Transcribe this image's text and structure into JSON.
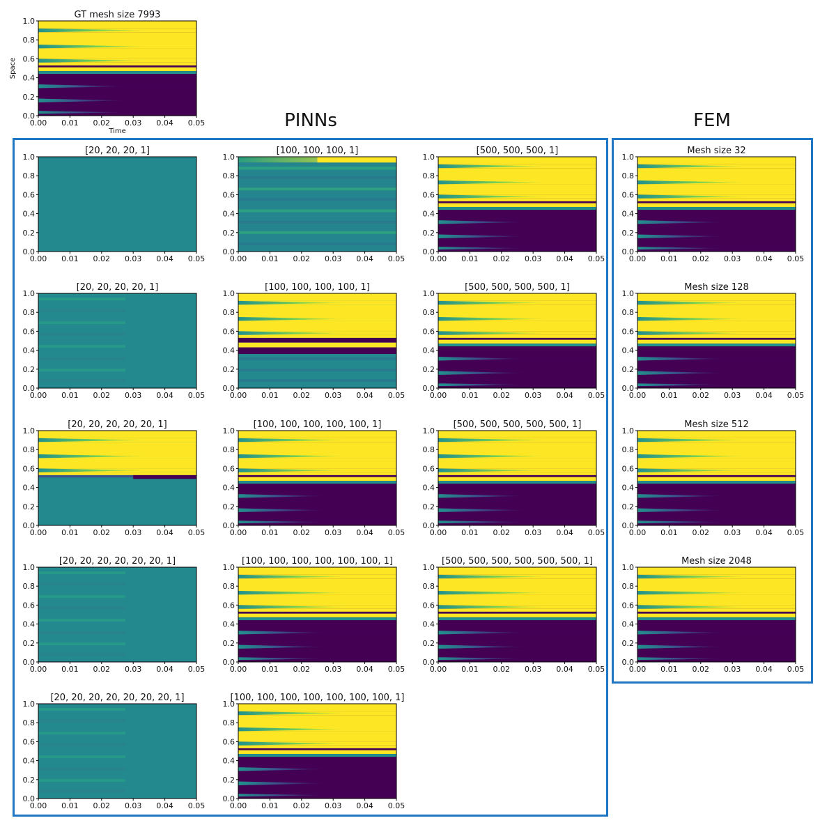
{
  "sections": {
    "pinns_title": "PINNs",
    "fem_title": "FEM"
  },
  "chart_data": [
    {
      "id": "gt",
      "type": "heatmap",
      "title": "GT mesh size 7993",
      "pattern": "full",
      "xlabel": "Time",
      "ylabel": "Space",
      "xticks": [
        "0.00",
        "0.01",
        "0.02",
        "0.03",
        "0.04",
        "0.05"
      ],
      "yticks": [
        "0.0",
        "0.2",
        "0.4",
        "0.6",
        "0.8",
        "1.0"
      ],
      "xlim": [
        0,
        0.05
      ],
      "ylim": [
        0,
        1
      ]
    },
    {
      "id": "p20_4",
      "type": "heatmap",
      "title": "[20, 20, 20, 1]",
      "pattern": "flat",
      "xticks": [
        "0.00",
        "0.01",
        "0.02",
        "0.03",
        "0.04",
        "0.05"
      ],
      "yticks": [
        "0.0",
        "0.2",
        "0.4",
        "0.6",
        "0.8",
        "1.0"
      ],
      "xlim": [
        0,
        0.05
      ],
      "ylim": [
        0,
        1
      ]
    },
    {
      "id": "p100_4",
      "type": "heatmap",
      "title": "[100, 100, 100, 1]",
      "pattern": "weak",
      "xticks": [
        "0.00",
        "0.01",
        "0.02",
        "0.03",
        "0.04",
        "0.05"
      ],
      "yticks": [
        "0.0",
        "0.2",
        "0.4",
        "0.6",
        "0.8",
        "1.0"
      ],
      "xlim": [
        0,
        0.05
      ],
      "ylim": [
        0,
        1
      ]
    },
    {
      "id": "p500_4",
      "type": "heatmap",
      "title": "[500, 500, 500, 1]",
      "pattern": "full",
      "xticks": [
        "0.00",
        "0.01",
        "0.02",
        "0.03",
        "0.04",
        "0.05"
      ],
      "yticks": [
        "0.0",
        "0.2",
        "0.4",
        "0.6",
        "0.8",
        "1.0"
      ],
      "xlim": [
        0,
        0.05
      ],
      "ylim": [
        0,
        1
      ]
    },
    {
      "id": "fem32",
      "type": "heatmap",
      "title": "Mesh size 32",
      "pattern": "full",
      "xticks": [
        "0.00",
        "0.01",
        "0.02",
        "0.03",
        "0.04",
        "0.05"
      ],
      "yticks": [
        "0.0",
        "0.2",
        "0.4",
        "0.6",
        "0.8",
        "1.0"
      ],
      "xlim": [
        0,
        0.05
      ],
      "ylim": [
        0,
        1
      ]
    },
    {
      "id": "p20_5",
      "type": "heatmap",
      "title": "[20, 20, 20, 20, 1]",
      "pattern": "flatstripe",
      "xticks": [
        "0.00",
        "0.01",
        "0.02",
        "0.03",
        "0.04",
        "0.05"
      ],
      "yticks": [
        "0.0",
        "0.2",
        "0.4",
        "0.6",
        "0.8",
        "1.0"
      ],
      "xlim": [
        0,
        0.05
      ],
      "ylim": [
        0,
        1
      ]
    },
    {
      "id": "p100_5",
      "type": "heatmap",
      "title": "[100, 100, 100, 100, 1]",
      "pattern": "partial",
      "xticks": [
        "0.00",
        "0.01",
        "0.02",
        "0.03",
        "0.04",
        "0.05"
      ],
      "yticks": [
        "0.0",
        "0.2",
        "0.4",
        "0.6",
        "0.8",
        "1.0"
      ],
      "xlim": [
        0,
        0.05
      ],
      "ylim": [
        0,
        1
      ]
    },
    {
      "id": "p500_5",
      "type": "heatmap",
      "title": "[500, 500, 500, 500, 1]",
      "pattern": "full",
      "xticks": [
        "0.00",
        "0.01",
        "0.02",
        "0.03",
        "0.04",
        "0.05"
      ],
      "yticks": [
        "0.0",
        "0.2",
        "0.4",
        "0.6",
        "0.8",
        "1.0"
      ],
      "xlim": [
        0,
        0.05
      ],
      "ylim": [
        0,
        1
      ]
    },
    {
      "id": "fem128",
      "type": "heatmap",
      "title": "Mesh size 128",
      "pattern": "full",
      "xticks": [
        "0.00",
        "0.01",
        "0.02",
        "0.03",
        "0.04",
        "0.05"
      ],
      "yticks": [
        "0.0",
        "0.2",
        "0.4",
        "0.6",
        "0.8",
        "1.0"
      ],
      "xlim": [
        0,
        0.05
      ],
      "ylim": [
        0,
        1
      ]
    },
    {
      "id": "p20_6",
      "type": "heatmap",
      "title": "[20, 20, 20, 20, 20, 1]",
      "pattern": "tophalf",
      "xticks": [
        "0.00",
        "0.01",
        "0.02",
        "0.03",
        "0.04",
        "0.05"
      ],
      "yticks": [
        "0.0",
        "0.2",
        "0.4",
        "0.6",
        "0.8",
        "1.0"
      ],
      "xlim": [
        0,
        0.05
      ],
      "ylim": [
        0,
        1
      ]
    },
    {
      "id": "p100_6",
      "type": "heatmap",
      "title": "[100, 100, 100, 100, 100, 1]",
      "pattern": "full",
      "xticks": [
        "0.00",
        "0.01",
        "0.02",
        "0.03",
        "0.04",
        "0.05"
      ],
      "yticks": [
        "0.0",
        "0.2",
        "0.4",
        "0.6",
        "0.8",
        "1.0"
      ],
      "xlim": [
        0,
        0.05
      ],
      "ylim": [
        0,
        1
      ]
    },
    {
      "id": "p500_6",
      "type": "heatmap",
      "title": "[500, 500, 500, 500, 500, 1]",
      "pattern": "full",
      "xticks": [
        "0.00",
        "0.01",
        "0.02",
        "0.03",
        "0.04",
        "0.05"
      ],
      "yticks": [
        "0.0",
        "0.2",
        "0.4",
        "0.6",
        "0.8",
        "1.0"
      ],
      "xlim": [
        0,
        0.05
      ],
      "ylim": [
        0,
        1
      ]
    },
    {
      "id": "fem512",
      "type": "heatmap",
      "title": "Mesh size 512",
      "pattern": "full",
      "xticks": [
        "0.00",
        "0.01",
        "0.02",
        "0.03",
        "0.04",
        "0.05"
      ],
      "yticks": [
        "0.0",
        "0.2",
        "0.4",
        "0.6",
        "0.8",
        "1.0"
      ],
      "xlim": [
        0,
        0.05
      ],
      "ylim": [
        0,
        1
      ]
    },
    {
      "id": "p20_7",
      "type": "heatmap",
      "title": "[20, 20, 20, 20, 20, 20, 1]",
      "pattern": "flatstripe",
      "xticks": [
        "0.00",
        "0.01",
        "0.02",
        "0.03",
        "0.04",
        "0.05"
      ],
      "yticks": [
        "0.0",
        "0.2",
        "0.4",
        "0.6",
        "0.8",
        "1.0"
      ],
      "xlim": [
        0,
        0.05
      ],
      "ylim": [
        0,
        1
      ]
    },
    {
      "id": "p100_7",
      "type": "heatmap",
      "title": "[100, 100, 100, 100, 100, 100, 1]",
      "pattern": "full",
      "xticks": [
        "0.00",
        "0.01",
        "0.02",
        "0.03",
        "0.04",
        "0.05"
      ],
      "yticks": [
        "0.0",
        "0.2",
        "0.4",
        "0.6",
        "0.8",
        "1.0"
      ],
      "xlim": [
        0,
        0.05
      ],
      "ylim": [
        0,
        1
      ]
    },
    {
      "id": "p500_7",
      "type": "heatmap",
      "title": "[500, 500, 500, 500, 500, 500, 1]",
      "pattern": "full",
      "xticks": [
        "0.00",
        "0.01",
        "0.02",
        "0.03",
        "0.04",
        "0.05"
      ],
      "yticks": [
        "0.0",
        "0.2",
        "0.4",
        "0.6",
        "0.8",
        "1.0"
      ],
      "xlim": [
        0,
        0.05
      ],
      "ylim": [
        0,
        1
      ]
    },
    {
      "id": "fem2048",
      "type": "heatmap",
      "title": "Mesh size 2048",
      "pattern": "full",
      "xticks": [
        "0.00",
        "0.01",
        "0.02",
        "0.03",
        "0.04",
        "0.05"
      ],
      "yticks": [
        "0.0",
        "0.2",
        "0.4",
        "0.6",
        "0.8",
        "1.0"
      ],
      "xlim": [
        0,
        0.05
      ],
      "ylim": [
        0,
        1
      ]
    },
    {
      "id": "p20_8",
      "type": "heatmap",
      "title": "[20, 20, 20, 20, 20, 20, 20, 1]",
      "pattern": "flatstripe",
      "xticks": [
        "0.00",
        "0.01",
        "0.02",
        "0.03",
        "0.04",
        "0.05"
      ],
      "yticks": [
        "0.0",
        "0.2",
        "0.4",
        "0.6",
        "0.8",
        "1.0"
      ],
      "xlim": [
        0,
        0.05
      ],
      "ylim": [
        0,
        1
      ]
    },
    {
      "id": "p100_8",
      "type": "heatmap",
      "title": "[100, 100, 100, 100, 100, 100, 100, 1]",
      "pattern": "full",
      "xticks": [
        "0.00",
        "0.01",
        "0.02",
        "0.03",
        "0.04",
        "0.05"
      ],
      "yticks": [
        "0.0",
        "0.2",
        "0.4",
        "0.6",
        "0.8",
        "1.0"
      ],
      "xlim": [
        0,
        0.05
      ],
      "ylim": [
        0,
        1
      ]
    }
  ],
  "colors": {
    "yellow": "#fde725",
    "teal": "#21918c",
    "purple": "#440154",
    "frame": "#1f77c4"
  }
}
